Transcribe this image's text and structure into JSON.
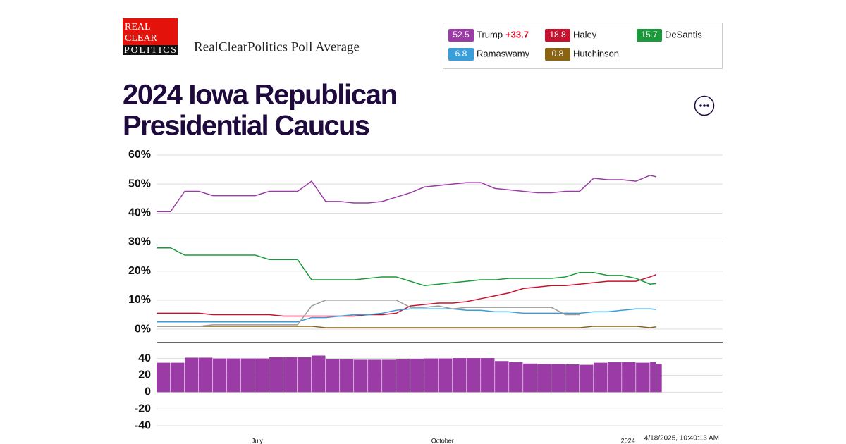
{
  "header": {
    "logo": [
      "REAL",
      "CLEAR",
      "POLITICS"
    ],
    "subtitle": "RealClearPolitics Poll Average"
  },
  "timestamp": "4/18/2025, 10:40:13 AM",
  "chart_data": [
    {
      "type": "line",
      "title": [
        "2024 Iowa Republican",
        "Presidential Caucus"
      ],
      "x": [
        0,
        7,
        14,
        21,
        28,
        35,
        42,
        49,
        56,
        63,
        70,
        77,
        84,
        91,
        98,
        105,
        112,
        119,
        126,
        133,
        140,
        147,
        154,
        161,
        168,
        175,
        182,
        189,
        196,
        203,
        210,
        217,
        224,
        231,
        238,
        245,
        248
      ],
      "xlim": [
        0,
        281
      ],
      "ylim": [
        -4.6,
        60
      ],
      "yticks": [
        {
          "value": 60,
          "label": "60%"
        },
        {
          "value": 50,
          "label": "50%"
        },
        {
          "value": 40,
          "label": "40%"
        },
        {
          "value": 30,
          "label": "30%"
        },
        {
          "value": 20,
          "label": "20%"
        },
        {
          "value": 10,
          "label": "10%"
        },
        {
          "value": 0,
          "label": "0%"
        }
      ],
      "grid": true,
      "series": [
        {
          "name": "Trump",
          "color": "#9b3ba6",
          "latest": 52.5,
          "spread": "+33.7",
          "values": [
            40.5,
            40.5,
            47.5,
            47.5,
            46,
            46,
            46,
            46,
            47.5,
            47.5,
            47.5,
            51,
            44,
            44,
            43.5,
            43.5,
            44,
            45.5,
            47,
            49,
            49.5,
            50,
            50.5,
            50.5,
            48.5,
            48,
            47.5,
            47,
            47,
            47.5,
            47.5,
            52,
            51.5,
            51.5,
            51,
            53,
            52.5
          ]
        },
        {
          "name": "Haley",
          "color": "#c8102e",
          "latest": 18.8,
          "values": [
            5.5,
            5.5,
            5.5,
            5.5,
            5,
            5,
            5,
            5,
            5,
            4.5,
            4.5,
            4.5,
            4.5,
            4.5,
            4.5,
            5,
            5,
            5.5,
            8,
            8.5,
            9,
            9,
            9.5,
            10.5,
            11.5,
            12.5,
            14,
            14.5,
            15,
            15,
            15.5,
            16,
            16.5,
            16.5,
            16.5,
            18,
            18.8
          ]
        },
        {
          "name": "DeSantis",
          "color": "#1a9a3a",
          "latest": 15.7,
          "values": [
            28,
            28,
            25.5,
            25.5,
            25.5,
            25.5,
            25.5,
            25.5,
            24,
            24,
            24,
            17,
            17,
            17,
            17,
            17.5,
            18,
            18,
            16.5,
            15,
            15.5,
            16,
            16.5,
            17,
            17,
            17.5,
            17.5,
            17.5,
            17.5,
            18,
            19.5,
            19.5,
            18.5,
            18.5,
            17.5,
            15.5,
            15.7
          ]
        },
        {
          "name": "Ramaswamy",
          "color": "#3a9fd8",
          "latest": 6.8,
          "values": [
            2.5,
            2.5,
            2.5,
            2.5,
            2.5,
            2.5,
            2.5,
            2.5,
            2.5,
            2.5,
            2.5,
            4,
            4,
            4.5,
            5,
            5,
            5.5,
            6.5,
            7,
            7,
            7,
            7,
            6.5,
            6.5,
            6,
            6,
            5.5,
            5.5,
            5.5,
            5.5,
            5.5,
            6,
            6,
            6.5,
            7,
            7,
            6.8
          ]
        },
        {
          "name": "Hutchinson",
          "color": "#8a6412",
          "latest": 0.8,
          "values": [
            1,
            1,
            1,
            1,
            1,
            1,
            1,
            1,
            1,
            1,
            1,
            1,
            0.5,
            0.5,
            0.5,
            0.5,
            0.5,
            0.5,
            0.5,
            0.5,
            0.5,
            0.5,
            0.5,
            0.5,
            0.5,
            0.5,
            0.5,
            0.5,
            0.5,
            0.5,
            0.5,
            1,
            1,
            1,
            1,
            0.5,
            0.8
          ]
        },
        {
          "color": "#9a9a9a",
          "values": [
            1,
            1,
            1,
            1,
            1.5,
            1.5,
            1.5,
            1.5,
            1.5,
            1.5,
            1.5,
            8,
            10,
            10,
            10,
            10,
            10,
            10,
            7.5,
            7.5,
            8,
            7,
            7.5,
            7.5,
            7.5,
            7.5,
            7.5,
            7.5,
            7.5,
            5,
            5,
            null,
            null,
            null,
            null,
            null,
            null
          ]
        }
      ]
    },
    {
      "type": "bar",
      "x": [
        0,
        7,
        14,
        21,
        28,
        35,
        42,
        49,
        56,
        63,
        70,
        77,
        84,
        91,
        98,
        105,
        112,
        119,
        126,
        133,
        140,
        147,
        154,
        161,
        168,
        175,
        182,
        189,
        196,
        203,
        210,
        217,
        224,
        231,
        238,
        245,
        248
      ],
      "xlim": [
        0,
        281
      ],
      "xticks": [
        {
          "value": 50,
          "label": "July"
        },
        {
          "value": 142,
          "label": "October"
        },
        {
          "value": 234,
          "label": "2024"
        }
      ],
      "ylim": [
        -45,
        59
      ],
      "yticks": [
        40,
        20,
        0,
        -20,
        -40
      ],
      "grid": true,
      "color": "#9b3ba6",
      "values": [
        35,
        35,
        41,
        41,
        40,
        40,
        40,
        40,
        41.5,
        41.5,
        41.5,
        43.5,
        39,
        39,
        38.5,
        38.5,
        38.5,
        39,
        39.5,
        40,
        40,
        40.5,
        40.5,
        40.5,
        37,
        35.5,
        34,
        33.5,
        33.5,
        33,
        32.5,
        35,
        35.5,
        35.5,
        35,
        36,
        33.7
      ]
    }
  ]
}
